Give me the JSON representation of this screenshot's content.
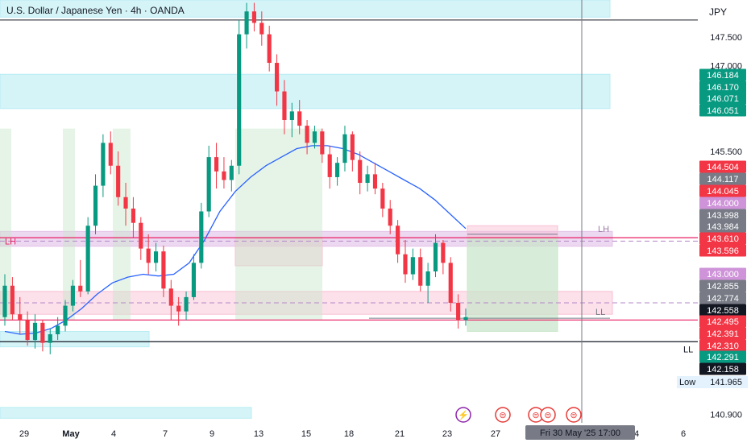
{
  "header": {
    "title": "U.S. Dollar / Japanese Yen · 4h · OANDA",
    "currency": "JPY"
  },
  "colors": {
    "up": "#089981",
    "down": "#f23645",
    "ma": "#2962ff",
    "zone_cyan": "#b2ebf2",
    "zone_pink": "#f8bbd0",
    "zone_purple": "#e1bee7",
    "zone_green": "#c8e6c9"
  },
  "chart_data": {
    "type": "candlestick",
    "title": "U.S. Dollar / Japanese Yen · 4h · OANDA",
    "y_axis_ticks": [
      "147.500",
      "147.000",
      "145.500",
      "143.300",
      "140.900"
    ],
    "x_axis_ticks": [
      "29",
      "May",
      "4",
      "7",
      "9",
      "13",
      "15",
      "18",
      "21",
      "23",
      "27",
      "30",
      "4",
      "6"
    ],
    "ylim": [
      140.75,
      148.15
    ],
    "crosshair_date": "Fri 30 May '25   17:00",
    "candles": [
      {
        "o": 142.6,
        "h": 143.35,
        "l": 142.45,
        "c": 143.15
      },
      {
        "o": 143.15,
        "h": 143.3,
        "l": 142.55,
        "c": 142.65
      },
      {
        "o": 142.65,
        "h": 142.95,
        "l": 142.3,
        "c": 142.55
      },
      {
        "o": 142.55,
        "h": 142.7,
        "l": 142.1,
        "c": 142.2
      },
      {
        "o": 142.2,
        "h": 142.65,
        "l": 142.05,
        "c": 142.5
      },
      {
        "o": 142.5,
        "h": 142.55,
        "l": 142.0,
        "c": 142.15
      },
      {
        "o": 142.15,
        "h": 142.4,
        "l": 141.95,
        "c": 142.3
      },
      {
        "o": 142.3,
        "h": 142.6,
        "l": 142.2,
        "c": 142.45
      },
      {
        "o": 142.45,
        "h": 142.9,
        "l": 142.35,
        "c": 142.8
      },
      {
        "o": 142.8,
        "h": 143.25,
        "l": 142.7,
        "c": 143.15
      },
      {
        "o": 143.15,
        "h": 143.6,
        "l": 142.95,
        "c": 143.05
      },
      {
        "o": 143.05,
        "h": 144.35,
        "l": 143.0,
        "c": 144.2
      },
      {
        "o": 144.2,
        "h": 145.1,
        "l": 144.05,
        "c": 144.9
      },
      {
        "o": 144.9,
        "h": 145.8,
        "l": 144.7,
        "c": 145.65
      },
      {
        "o": 145.65,
        "h": 145.85,
        "l": 145.1,
        "c": 145.25
      },
      {
        "o": 145.25,
        "h": 145.5,
        "l": 144.55,
        "c": 144.7
      },
      {
        "o": 144.7,
        "h": 144.95,
        "l": 144.2,
        "c": 144.5
      },
      {
        "o": 144.5,
        "h": 144.7,
        "l": 144.0,
        "c": 144.25
      },
      {
        "o": 144.25,
        "h": 144.35,
        "l": 143.6,
        "c": 143.8
      },
      {
        "o": 143.8,
        "h": 144.05,
        "l": 143.35,
        "c": 143.55
      },
      {
        "o": 143.55,
        "h": 143.9,
        "l": 143.4,
        "c": 143.75
      },
      {
        "o": 143.75,
        "h": 143.85,
        "l": 142.95,
        "c": 143.1
      },
      {
        "o": 143.1,
        "h": 143.25,
        "l": 142.55,
        "c": 142.8
      },
      {
        "o": 142.8,
        "h": 142.95,
        "l": 142.45,
        "c": 142.7
      },
      {
        "o": 142.7,
        "h": 143.05,
        "l": 142.55,
        "c": 142.95
      },
      {
        "o": 142.95,
        "h": 143.7,
        "l": 142.9,
        "c": 143.55
      },
      {
        "o": 143.55,
        "h": 144.6,
        "l": 143.45,
        "c": 144.45
      },
      {
        "o": 144.45,
        "h": 145.6,
        "l": 144.35,
        "c": 145.4
      },
      {
        "o": 145.4,
        "h": 145.65,
        "l": 144.85,
        "c": 145.15
      },
      {
        "o": 145.15,
        "h": 145.4,
        "l": 144.85,
        "c": 145.0
      },
      {
        "o": 145.0,
        "h": 145.35,
        "l": 144.8,
        "c": 145.25
      },
      {
        "o": 145.25,
        "h": 147.8,
        "l": 145.1,
        "c": 147.55
      },
      {
        "o": 147.55,
        "h": 148.1,
        "l": 147.3,
        "c": 147.95
      },
      {
        "o": 147.95,
        "h": 148.1,
        "l": 147.6,
        "c": 147.75
      },
      {
        "o": 147.75,
        "h": 147.95,
        "l": 147.35,
        "c": 147.55
      },
      {
        "o": 147.55,
        "h": 147.7,
        "l": 146.9,
        "c": 147.05
      },
      {
        "o": 147.05,
        "h": 147.2,
        "l": 146.3,
        "c": 146.55
      },
      {
        "o": 146.55,
        "h": 146.75,
        "l": 145.8,
        "c": 146.05
      },
      {
        "o": 146.05,
        "h": 146.35,
        "l": 145.75,
        "c": 146.2
      },
      {
        "o": 146.2,
        "h": 146.4,
        "l": 145.8,
        "c": 145.95
      },
      {
        "o": 145.95,
        "h": 146.05,
        "l": 145.45,
        "c": 145.65
      },
      {
        "o": 145.65,
        "h": 145.95,
        "l": 145.55,
        "c": 145.85
      },
      {
        "o": 145.85,
        "h": 145.9,
        "l": 145.3,
        "c": 145.45
      },
      {
        "o": 145.45,
        "h": 145.6,
        "l": 144.85,
        "c": 145.05
      },
      {
        "o": 145.05,
        "h": 145.4,
        "l": 144.9,
        "c": 145.3
      },
      {
        "o": 145.3,
        "h": 145.95,
        "l": 145.15,
        "c": 145.8
      },
      {
        "o": 145.8,
        "h": 145.85,
        "l": 145.15,
        "c": 145.35
      },
      {
        "o": 145.35,
        "h": 145.5,
        "l": 144.75,
        "c": 144.95
      },
      {
        "o": 144.95,
        "h": 145.25,
        "l": 144.8,
        "c": 145.1
      },
      {
        "o": 145.1,
        "h": 145.3,
        "l": 144.75,
        "c": 144.85
      },
      {
        "o": 144.85,
        "h": 144.95,
        "l": 144.35,
        "c": 144.5
      },
      {
        "o": 144.5,
        "h": 144.65,
        "l": 144.05,
        "c": 144.2
      },
      {
        "o": 144.2,
        "h": 144.3,
        "l": 143.55,
        "c": 143.7
      },
      {
        "o": 143.7,
        "h": 143.95,
        "l": 143.2,
        "c": 143.35
      },
      {
        "o": 143.35,
        "h": 143.8,
        "l": 143.25,
        "c": 143.65
      },
      {
        "o": 143.65,
        "h": 143.8,
        "l": 143.05,
        "c": 143.15
      },
      {
        "o": 143.15,
        "h": 143.55,
        "l": 142.85,
        "c": 143.4
      },
      {
        "o": 143.4,
        "h": 144.05,
        "l": 143.3,
        "c": 143.9
      },
      {
        "o": 143.9,
        "h": 143.95,
        "l": 143.35,
        "c": 143.55
      },
      {
        "o": 143.55,
        "h": 143.65,
        "l": 142.7,
        "c": 142.85
      },
      {
        "o": 142.85,
        "h": 143.0,
        "l": 142.4,
        "c": 142.55
      },
      {
        "o": 142.55,
        "h": 142.75,
        "l": 142.45,
        "c": 142.6
      }
    ],
    "ma_line": [
      142.35,
      142.3,
      142.32,
      142.4,
      142.55,
      142.75,
      143.0,
      143.2,
      143.3,
      143.35,
      143.32,
      143.35,
      143.55,
      143.95,
      144.45,
      144.8,
      145.05,
      145.25,
      145.4,
      145.55,
      145.6,
      145.6,
      145.55,
      145.45,
      145.3,
      145.15,
      145.0,
      144.85,
      144.65,
      144.4,
      144.15
    ],
    "price_scale_labels": [
      {
        "value": 146.184,
        "text": "146.184",
        "color": "#089981"
      },
      {
        "value": 146.17,
        "text": "146.170",
        "color": "#089981"
      },
      {
        "value": 146.071,
        "text": "146.071",
        "color": "#089981"
      },
      {
        "value": 146.051,
        "text": "146.051",
        "color": "#089981"
      },
      {
        "value": 144.504,
        "text": "144.504",
        "color": "#f23645"
      },
      {
        "value": 144.117,
        "text": "144.117",
        "color": "#787b86"
      },
      {
        "value": 144.045,
        "text": "144.045",
        "color": "#f23645"
      },
      {
        "value": 144.0,
        "text": "144.000",
        "color": "#ce93d8"
      },
      {
        "value": 143.998,
        "text": "143.998",
        "color": "#787b86"
      },
      {
        "value": 143.984,
        "text": "143.984",
        "color": "#787b86"
      },
      {
        "value": 143.61,
        "text": "143.610",
        "color": "#f23645"
      },
      {
        "value": 143.596,
        "text": "143.596",
        "color": "#f23645"
      },
      {
        "value": 143.0,
        "text": "143.000",
        "color": "#ce93d8"
      },
      {
        "value": 142.855,
        "text": "142.855",
        "color": "#787b86"
      },
      {
        "value": 142.774,
        "text": "142.774",
        "color": "#787b86"
      },
      {
        "value": 142.558,
        "text": "142.558",
        "color": "#131722"
      },
      {
        "value": 142.495,
        "text": "142.495",
        "color": "#f23645"
      },
      {
        "value": 142.391,
        "text": "142.391",
        "color": "#f23645"
      },
      {
        "value": 142.31,
        "text": "142.310",
        "color": "#f23645"
      },
      {
        "value": 142.291,
        "text": "142.291",
        "color": "#089981"
      },
      {
        "value": 142.158,
        "text": "142.158",
        "color": "#131722"
      }
    ],
    "low_label": {
      "label": "Low",
      "text": "141.965"
    },
    "line_labels": {
      "lh_left": "LH",
      "lh_right": "LH",
      "ll_right": "LL",
      "ll_axis": "LL"
    },
    "levels": {
      "top_line": 147.8,
      "lh_line": 143.99,
      "lh_dashed": 143.93,
      "ll_line": 142.55,
      "ll_short": 142.58,
      "black_line": 142.17,
      "pink_dashed": 142.85
    },
    "zones": [
      {
        "kind": "cyan",
        "y1": 147.85,
        "y2": 148.15
      },
      {
        "kind": "cyan",
        "y1": 146.25,
        "y2": 146.85
      },
      {
        "kind": "cyan",
        "y1": 142.08,
        "y2": 142.35
      },
      {
        "kind": "cyan",
        "y1": 140.83,
        "y2": 141.02
      },
      {
        "kind": "purple",
        "y1": 143.84,
        "y2": 144.1
      },
      {
        "kind": "pink",
        "y1": 142.65,
        "y2": 143.05
      },
      {
        "kind": "pink",
        "y1": 143.5,
        "y2": 143.98
      },
      {
        "kind": "pink",
        "y1": 144.0,
        "y2": 144.2
      },
      {
        "kind": "green",
        "y1": 142.35,
        "y2": 143.98
      }
    ],
    "grid": false
  }
}
